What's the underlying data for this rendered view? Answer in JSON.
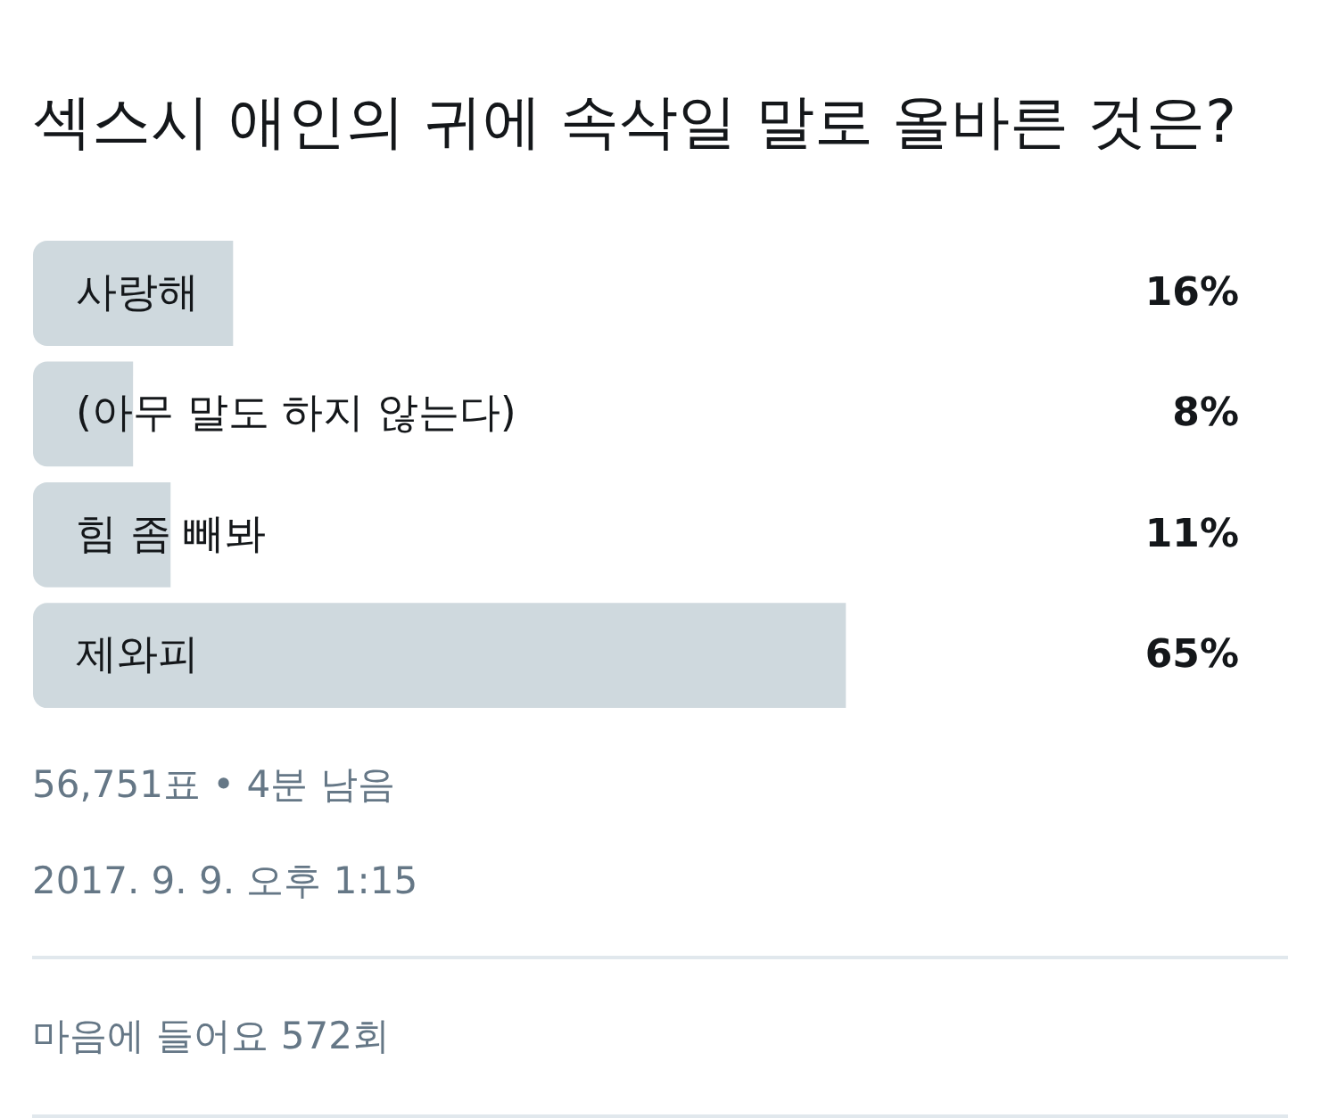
{
  "chart_data": {
    "type": "bar",
    "orientation": "horizontal",
    "title": "섹스시 애인의 귀에 속삭일 말로 올바른 것은?",
    "categories": [
      "사랑해",
      "(아무 말도 하지 않는다)",
      "힘 좀 빼봐",
      "제와피"
    ],
    "values": [
      16,
      8,
      11,
      65
    ],
    "value_labels": [
      "16%",
      "8%",
      "11%",
      "65%"
    ],
    "color": "#cfd9de",
    "tick_labels": false,
    "annotations": [
      "56,751표 • 4분 남음",
      "2017. 9. 9. 오후 1:15",
      "마음에 들어요 572회"
    ]
  }
}
